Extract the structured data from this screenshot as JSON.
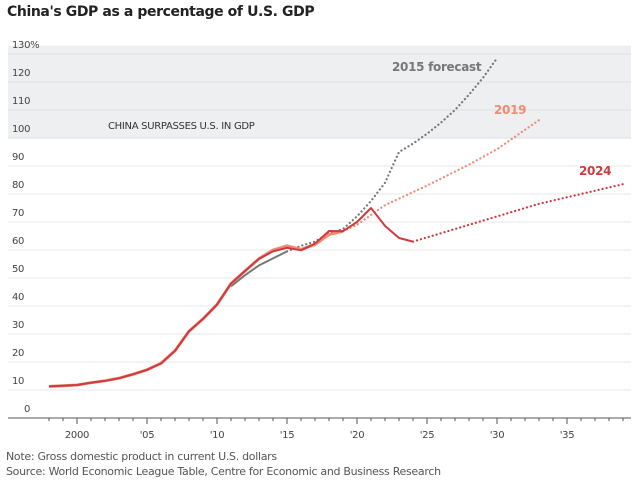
{
  "chart_data": {
    "type": "line",
    "title": "China's GDP as a percentage of U.S. GDP",
    "xlabel": "",
    "ylabel": "",
    "xlim": [
      1997.5,
      2039.8
    ],
    "ylim": [
      0,
      130
    ],
    "x_tick_labels": [
      "2000",
      "'05",
      "'10",
      "'15",
      "'20",
      "'25",
      "'30",
      "'35"
    ],
    "x_ticks": [
      2000,
      2005,
      2010,
      2015,
      2020,
      2025,
      2030,
      2035
    ],
    "y_ticks": [
      0,
      10,
      20,
      30,
      40,
      50,
      60,
      70,
      80,
      90,
      100,
      110,
      120,
      130
    ],
    "y_tick_labels": [
      "0",
      "10",
      "20",
      "30",
      "40",
      "50",
      "60",
      "70",
      "80",
      "90",
      "100",
      "110",
      "120",
      "130%"
    ],
    "grid": true,
    "shaded_region": {
      "from": 100,
      "to": 133,
      "color": "#eeeff1",
      "label": "CHINA SURPASSES U.S. IN GDP"
    },
    "series": [
      {
        "name": "2015 forecast",
        "color": "#777777",
        "actual": {
          "x": [
            2011,
            2012,
            2013,
            2014,
            2015
          ],
          "y": [
            47,
            51,
            54.5,
            57,
            59.5
          ]
        },
        "forecast": {
          "x": [
            2015,
            2016,
            2017,
            2018,
            2019,
            2020,
            2021,
            2022,
            2023,
            2024,
            2025,
            2026,
            2027,
            2028,
            2029,
            2030
          ],
          "y": [
            59.5,
            61.5,
            63,
            66,
            67.5,
            72,
            77.5,
            84,
            95,
            98,
            101.5,
            105.5,
            110,
            115.5,
            121.5,
            128.5
          ]
        }
      },
      {
        "name": "2019",
        "color": "#f08a72",
        "actual": {
          "x": [
            1998,
            1999,
            2000,
            2001,
            2002,
            2003,
            2004,
            2005,
            2006,
            2007,
            2008,
            2009,
            2010,
            2011,
            2012,
            2013,
            2014,
            2015,
            2016,
            2017,
            2018,
            2019
          ],
          "y": [
            11.3,
            11.5,
            11.8,
            12.6,
            13.3,
            14.2,
            15.6,
            17.2,
            19.5,
            24,
            31,
            35.4,
            40.5,
            48,
            52.5,
            56.9,
            60,
            61.5,
            60.2,
            62,
            65.5,
            66.7
          ]
        },
        "forecast": {
          "x": [
            2019,
            2020,
            2022,
            2025,
            2028,
            2030,
            2033
          ],
          "y": [
            66.7,
            69,
            76,
            83,
            90.5,
            96,
            106.4
          ]
        }
      },
      {
        "name": "2024",
        "color": "#d03a3f",
        "actual": {
          "x": [
            1998,
            1999,
            2000,
            2001,
            2002,
            2003,
            2004,
            2005,
            2006,
            2007,
            2008,
            2009,
            2010,
            2011,
            2012,
            2013,
            2014,
            2015,
            2016,
            2017,
            2018,
            2019,
            2020,
            2021,
            2022,
            2023,
            2024
          ],
          "y": [
            11.3,
            11.5,
            11.8,
            12.6,
            13.3,
            14.2,
            15.6,
            17.2,
            19.5,
            24,
            31,
            35.4,
            40.5,
            48,
            52.5,
            56.9,
            59.5,
            60.8,
            59.9,
            62.3,
            66.8,
            66.7,
            70,
            75,
            68.6,
            64.3,
            63
          ]
        },
        "forecast": {
          "x": [
            2024,
            2025,
            2027,
            2030,
            2033,
            2036,
            2039
          ],
          "y": [
            63,
            64.5,
            67.5,
            72,
            76.5,
            80,
            83.5
          ]
        }
      }
    ],
    "note": "Note: Gross domestic product in current U.S. dollars",
    "source": "Source: World Economic League Table, Centre for Economic and Business Research"
  }
}
